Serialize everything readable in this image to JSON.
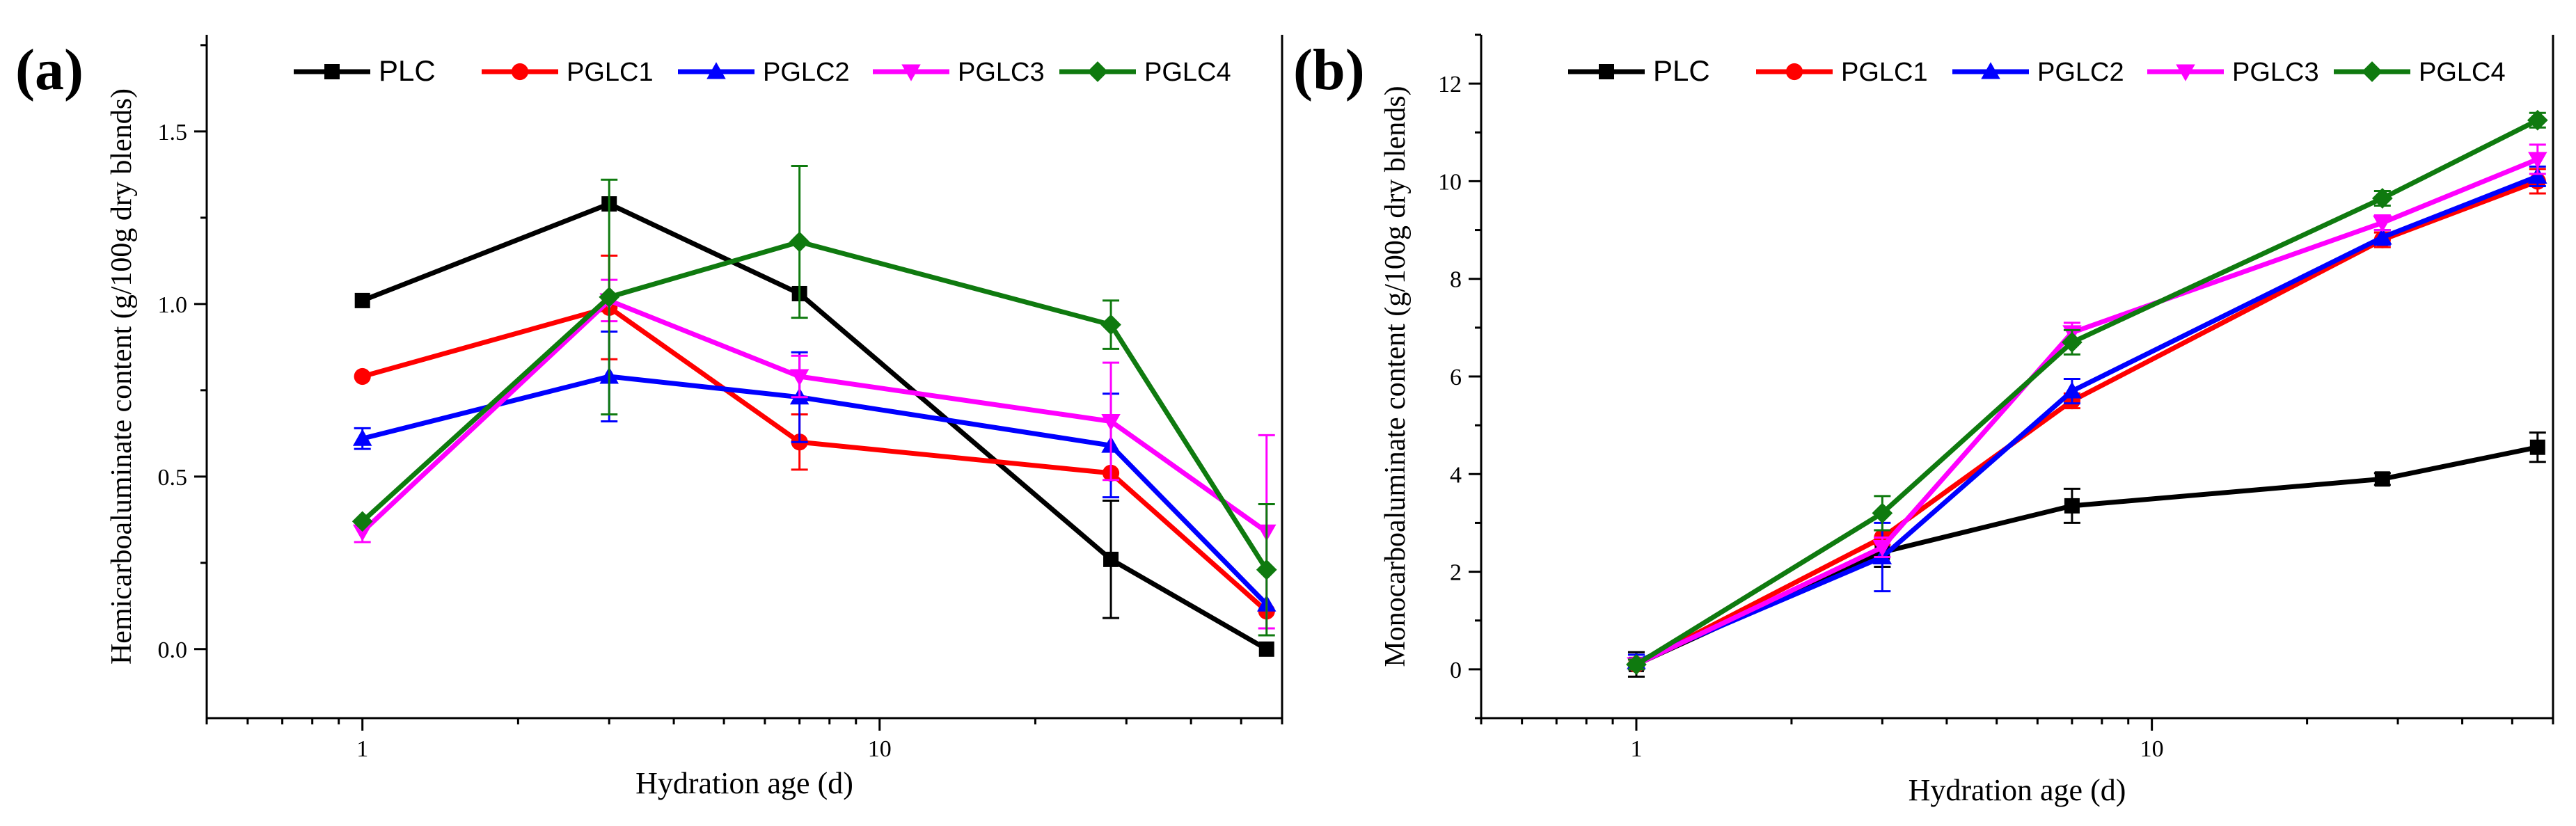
{
  "chart_data": [
    {
      "type": "line",
      "panel_label": "(a)",
      "xscale": "log",
      "xlim": [
        0.5,
        60
      ],
      "ylim": [
        -0.2,
        1.78
      ],
      "xticks": [
        {
          "value": 1,
          "label": "1"
        },
        {
          "value": 10,
          "label": "10"
        }
      ],
      "yticks": [
        {
          "value": 0.0,
          "label": "0.0"
        },
        {
          "value": 0.5,
          "label": "0.5"
        },
        {
          "value": 1.0,
          "label": "1.0"
        },
        {
          "value": 1.5,
          "label": "1.5"
        }
      ],
      "xlabel": "Hydration age (d)",
      "ylabel": "Hemicarboaluminate content (g/100g dry blends)",
      "x": [
        1,
        3,
        7,
        28,
        56
      ],
      "legend_position": "top",
      "series": [
        {
          "name": "PLC",
          "color": "#000000",
          "marker": "square",
          "values": [
            1.01,
            1.29,
            1.03,
            0.26,
            0.0
          ],
          "errors": [
            0,
            0,
            0,
            0.17,
            0
          ]
        },
        {
          "name": "PGLC1",
          "color": "#ff0000",
          "marker": "circle",
          "values": [
            0.79,
            0.99,
            0.6,
            0.51,
            0.11
          ],
          "errors": [
            0,
            0.15,
            0.08,
            0,
            0
          ]
        },
        {
          "name": "PGLC2",
          "color": "#0000ff",
          "marker": "triangle-up",
          "values": [
            0.61,
            0.79,
            0.73,
            0.59,
            0.13
          ],
          "errors": [
            0.03,
            0.13,
            0.13,
            0.15,
            0
          ]
        },
        {
          "name": "PGLC3",
          "color": "#ff00ff",
          "marker": "triangle-down",
          "values": [
            0.34,
            1.01,
            0.79,
            0.66,
            0.34
          ],
          "errors": [
            0.03,
            0.06,
            0.06,
            0.17,
            0.28
          ]
        },
        {
          "name": "PGLC4",
          "color": "#0f7a0f",
          "marker": "diamond",
          "values": [
            0.37,
            1.02,
            1.18,
            0.94,
            0.23
          ],
          "errors": [
            0,
            0.34,
            0.22,
            0.07,
            0.19
          ]
        }
      ]
    },
    {
      "type": "line",
      "panel_label": "(b)",
      "xscale": "log",
      "xlim": [
        0.5,
        60
      ],
      "ylim": [
        -1,
        13
      ],
      "xticks": [
        {
          "value": 1,
          "label": "1"
        },
        {
          "value": 10,
          "label": "10"
        }
      ],
      "yticks": [
        {
          "value": 0,
          "label": "0"
        },
        {
          "value": 2,
          "label": "2"
        },
        {
          "value": 4,
          "label": "4"
        },
        {
          "value": 6,
          "label": "6"
        },
        {
          "value": 8,
          "label": "8"
        },
        {
          "value": 10,
          "label": "10"
        },
        {
          "value": 12,
          "label": "12"
        }
      ],
      "xlabel": "Hydration age (d)",
      "ylabel": "Monocarboaluminate content (g/100g dry blends)",
      "x": [
        1,
        3,
        7,
        28,
        56
      ],
      "legend_position": "top",
      "series": [
        {
          "name": "PLC",
          "color": "#000000",
          "marker": "square",
          "values": [
            0.1,
            2.4,
            3.35,
            3.9,
            4.55
          ],
          "errors": [
            0.25,
            0.3,
            0.35,
            0.12,
            0.3
          ]
        },
        {
          "name": "PGLC1",
          "color": "#ff0000",
          "marker": "circle",
          "values": [
            0.1,
            2.7,
            5.5,
            8.8,
            10.0
          ],
          "errors": [
            0.1,
            0.15,
            0.15,
            0.15,
            0.25
          ]
        },
        {
          "name": "PGLC2",
          "color": "#0000ff",
          "marker": "triangle-up",
          "values": [
            0.15,
            2.3,
            5.7,
            8.85,
            10.1
          ],
          "errors": [
            0.15,
            0.7,
            0.25,
            0.15,
            0.2
          ]
        },
        {
          "name": "PGLC3",
          "color": "#ff00ff",
          "marker": "triangle-down",
          "values": [
            0.1,
            2.5,
            6.9,
            9.15,
            10.45
          ],
          "errors": [
            0.1,
            0.2,
            0.2,
            0.15,
            0.3
          ]
        },
        {
          "name": "PGLC4",
          "color": "#0f7a0f",
          "marker": "diamond",
          "values": [
            0.1,
            3.2,
            6.7,
            9.65,
            11.25
          ],
          "errors": [
            0.1,
            0.35,
            0.25,
            0.15,
            0.15
          ]
        }
      ]
    }
  ]
}
